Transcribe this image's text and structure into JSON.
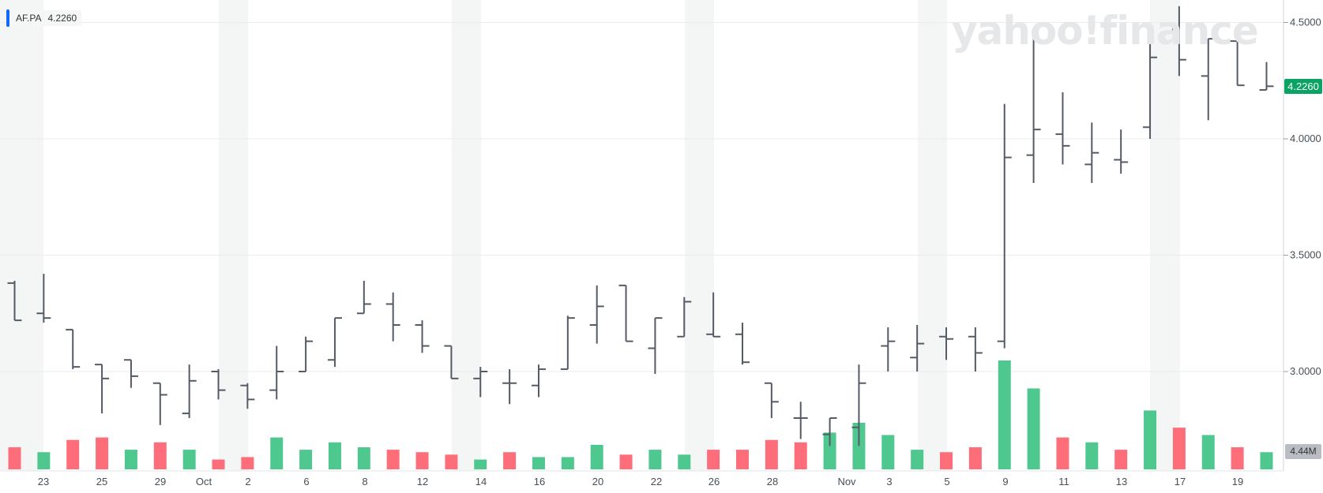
{
  "legend": {
    "symbol": "AF.PA",
    "value": "4.2260"
  },
  "watermark": "yahoo!finance",
  "price_badge": "4.2260",
  "volume_badge": "4.44M",
  "colors": {
    "ohlc": "#555b66",
    "up_volume": "#4fc88f",
    "down_volume": "#fd6d7a",
    "band": "#f4f5f5",
    "last_price": "#0aa364",
    "legend_accent": "#0f69ff"
  },
  "chart_data": {
    "type": "ohlc",
    "title": "",
    "xlabel": "",
    "ylabel": "",
    "ylim": [
      2.6,
      4.6
    ],
    "y_ticks": [
      "3.0000",
      "3.5000",
      "4.0000",
      "4.5000"
    ],
    "x_tick_labels": [
      "23",
      "25",
      "29",
      "Oct",
      "2",
      "6",
      "8",
      "12",
      "14",
      "16",
      "20",
      "22",
      "26",
      "28",
      "Nov",
      "3",
      "5",
      "9",
      "11",
      "13",
      "17",
      "19"
    ],
    "grid": true,
    "bars": [
      {
        "o": 3.38,
        "h": 3.39,
        "l": 3.22,
        "c": 3.22,
        "up": false
      },
      {
        "o": 3.25,
        "h": 3.42,
        "l": 3.21,
        "c": 3.23,
        "up": true
      },
      {
        "o": 3.18,
        "h": 3.18,
        "l": 3.01,
        "c": 3.02,
        "up": false
      },
      {
        "o": 3.03,
        "h": 3.03,
        "l": 2.82,
        "c": 2.97,
        "up": false
      },
      {
        "o": 3.05,
        "h": 3.05,
        "l": 2.93,
        "c": 2.98,
        "up": true
      },
      {
        "o": 2.95,
        "h": 2.95,
        "l": 2.77,
        "c": 2.9,
        "up": false
      },
      {
        "o": 2.82,
        "h": 3.03,
        "l": 2.8,
        "c": 2.96,
        "up": true
      },
      {
        "o": 3.0,
        "h": 3.01,
        "l": 2.88,
        "c": 2.92,
        "up": false
      },
      {
        "o": 2.94,
        "h": 2.95,
        "l": 2.84,
        "c": 2.88,
        "up": false
      },
      {
        "o": 2.92,
        "h": 3.11,
        "l": 2.88,
        "c": 3.0,
        "up": true
      },
      {
        "o": 3.0,
        "h": 3.15,
        "l": 3.0,
        "c": 3.13,
        "up": true
      },
      {
        "o": 3.05,
        "h": 3.23,
        "l": 3.02,
        "c": 3.23,
        "up": true
      },
      {
        "o": 3.25,
        "h": 3.39,
        "l": 3.25,
        "c": 3.29,
        "up": true
      },
      {
        "o": 3.29,
        "h": 3.34,
        "l": 3.13,
        "c": 3.2,
        "up": false
      },
      {
        "o": 3.2,
        "h": 3.22,
        "l": 3.08,
        "c": 3.11,
        "up": false
      },
      {
        "o": 3.11,
        "h": 3.11,
        "l": 2.97,
        "c": 2.97,
        "up": false
      },
      {
        "o": 2.97,
        "h": 3.02,
        "l": 2.89,
        "c": 3.0,
        "up": true
      },
      {
        "o": 2.95,
        "h": 3.01,
        "l": 2.86,
        "c": 2.95,
        "up": false
      },
      {
        "o": 2.94,
        "h": 3.03,
        "l": 2.89,
        "c": 3.01,
        "up": true
      },
      {
        "o": 3.01,
        "h": 3.24,
        "l": 3.01,
        "c": 3.23,
        "up": true
      },
      {
        "o": 3.2,
        "h": 3.37,
        "l": 3.12,
        "c": 3.28,
        "up": true
      },
      {
        "o": 3.37,
        "h": 3.37,
        "l": 3.13,
        "c": 3.13,
        "up": false
      },
      {
        "o": 3.1,
        "h": 3.23,
        "l": 2.99,
        "c": 3.23,
        "up": true
      },
      {
        "o": 3.15,
        "h": 3.32,
        "l": 3.15,
        "c": 3.3,
        "up": true
      },
      {
        "o": 3.16,
        "h": 3.34,
        "l": 3.15,
        "c": 3.15,
        "up": false
      },
      {
        "o": 3.16,
        "h": 3.21,
        "l": 3.03,
        "c": 3.04,
        "up": false
      },
      {
        "o": 2.95,
        "h": 2.95,
        "l": 2.8,
        "c": 2.87,
        "up": false
      },
      {
        "o": 2.8,
        "h": 2.87,
        "l": 2.71,
        "c": 2.8,
        "up": false
      },
      {
        "o": 2.73,
        "h": 2.8,
        "l": 2.68,
        "c": 2.8,
        "up": true
      },
      {
        "o": 2.76,
        "h": 3.03,
        "l": 2.68,
        "c": 2.95,
        "up": true
      },
      {
        "o": 3.11,
        "h": 3.19,
        "l": 3.0,
        "c": 3.13,
        "up": true
      },
      {
        "o": 3.06,
        "h": 3.2,
        "l": 3.0,
        "c": 3.12,
        "up": true
      },
      {
        "o": 3.15,
        "h": 3.19,
        "l": 3.05,
        "c": 3.14,
        "up": false
      },
      {
        "o": 3.15,
        "h": 3.19,
        "l": 3.0,
        "c": 3.08,
        "up": false
      },
      {
        "o": 3.13,
        "h": 4.15,
        "l": 3.1,
        "c": 3.92,
        "up": true
      },
      {
        "o": 3.93,
        "h": 4.47,
        "l": 3.81,
        "c": 4.04,
        "up": true
      },
      {
        "o": 4.02,
        "h": 4.2,
        "l": 3.89,
        "c": 3.97,
        "up": false
      },
      {
        "o": 3.89,
        "h": 4.07,
        "l": 3.81,
        "c": 3.94,
        "up": true
      },
      {
        "o": 3.91,
        "h": 4.04,
        "l": 3.85,
        "c": 3.9,
        "up": false
      },
      {
        "o": 4.05,
        "h": 4.49,
        "l": 4.0,
        "c": 4.35,
        "up": true
      },
      {
        "o": 4.47,
        "h": 4.57,
        "l": 4.27,
        "c": 4.34,
        "up": false
      },
      {
        "o": 4.27,
        "h": 4.43,
        "l": 4.08,
        "c": 4.43,
        "up": true
      },
      {
        "o": 4.42,
        "h": 4.42,
        "l": 4.23,
        "c": 4.23,
        "up": false
      },
      {
        "o": 4.21,
        "h": 4.33,
        "l": 4.21,
        "c": 4.226,
        "up": true
      }
    ],
    "volume": {
      "max": 4.44,
      "values": [
        0.9,
        0.7,
        1.2,
        1.3,
        0.8,
        1.1,
        0.8,
        0.4,
        0.5,
        1.3,
        0.8,
        1.1,
        0.9,
        0.8,
        0.7,
        0.6,
        0.4,
        0.7,
        0.5,
        0.5,
        1.0,
        0.6,
        0.8,
        0.6,
        0.8,
        0.8,
        1.2,
        1.1,
        1.5,
        1.9,
        1.4,
        0.8,
        0.7,
        0.9,
        4.44,
        3.3,
        1.3,
        1.1,
        0.8,
        2.4,
        1.7,
        1.4,
        0.9,
        0.7
      ]
    }
  }
}
